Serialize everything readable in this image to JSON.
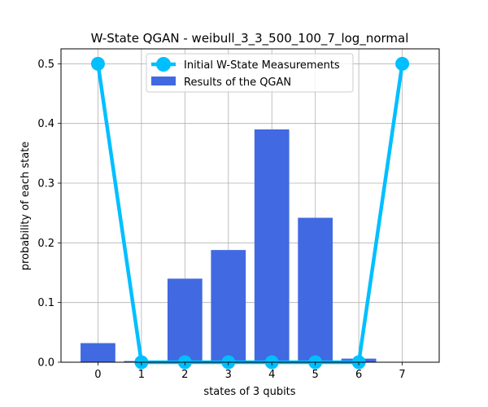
{
  "chart_data": {
    "type": "bar",
    "title": "W-State QGAN - weibull_3_3_500_100_7_log_normal",
    "xlabel": "states of 3 qubits",
    "ylabel": "probability of each state",
    "x_ticks": [
      0,
      1,
      2,
      3,
      4,
      5,
      6,
      7
    ],
    "y_ticks": [
      "0.0",
      "0.1",
      "0.2",
      "0.3",
      "0.4",
      "0.5"
    ],
    "xlim": [
      -0.85,
      7.85
    ],
    "ylim": [
      0,
      0.525
    ],
    "grid": true,
    "legend_placement": "top-center",
    "series": [
      {
        "name": "Initial W-State Measurements",
        "kind": "line",
        "color": "#00bfff",
        "x": [
          0,
          1,
          2,
          3,
          4,
          5,
          6,
          7
        ],
        "values": [
          0.5,
          0.0,
          0.0,
          0.0,
          0.0,
          0.0,
          0.0,
          0.5
        ]
      },
      {
        "name": "Results of the QGAN",
        "kind": "bar",
        "color": "#4169e1",
        "x": [
          0,
          1,
          2,
          3,
          4,
          5,
          6,
          7
        ],
        "values": [
          0.032,
          0.002,
          0.14,
          0.188,
          0.39,
          0.242,
          0.006,
          0.0
        ]
      }
    ]
  }
}
